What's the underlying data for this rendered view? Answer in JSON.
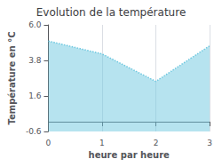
{
  "chart_data": {
    "type": "area",
    "title": "Evolution de la température",
    "xlabel": "heure par heure",
    "ylabel": "Température en °C",
    "x": [
      0,
      1,
      2,
      3
    ],
    "values": [
      5.0,
      4.2,
      2.5,
      4.7
    ],
    "xlim": [
      0,
      3
    ],
    "ylim": [
      -0.6,
      6.0
    ],
    "xticks": [
      0,
      1,
      2,
      3
    ],
    "yticks": [
      -0.6,
      1.6,
      3.8,
      {
        "value": 6.0,
        "label": "6.0"
      }
    ],
    "color": "#6ec8e0",
    "line_style": "dotted",
    "grid": "x"
  }
}
